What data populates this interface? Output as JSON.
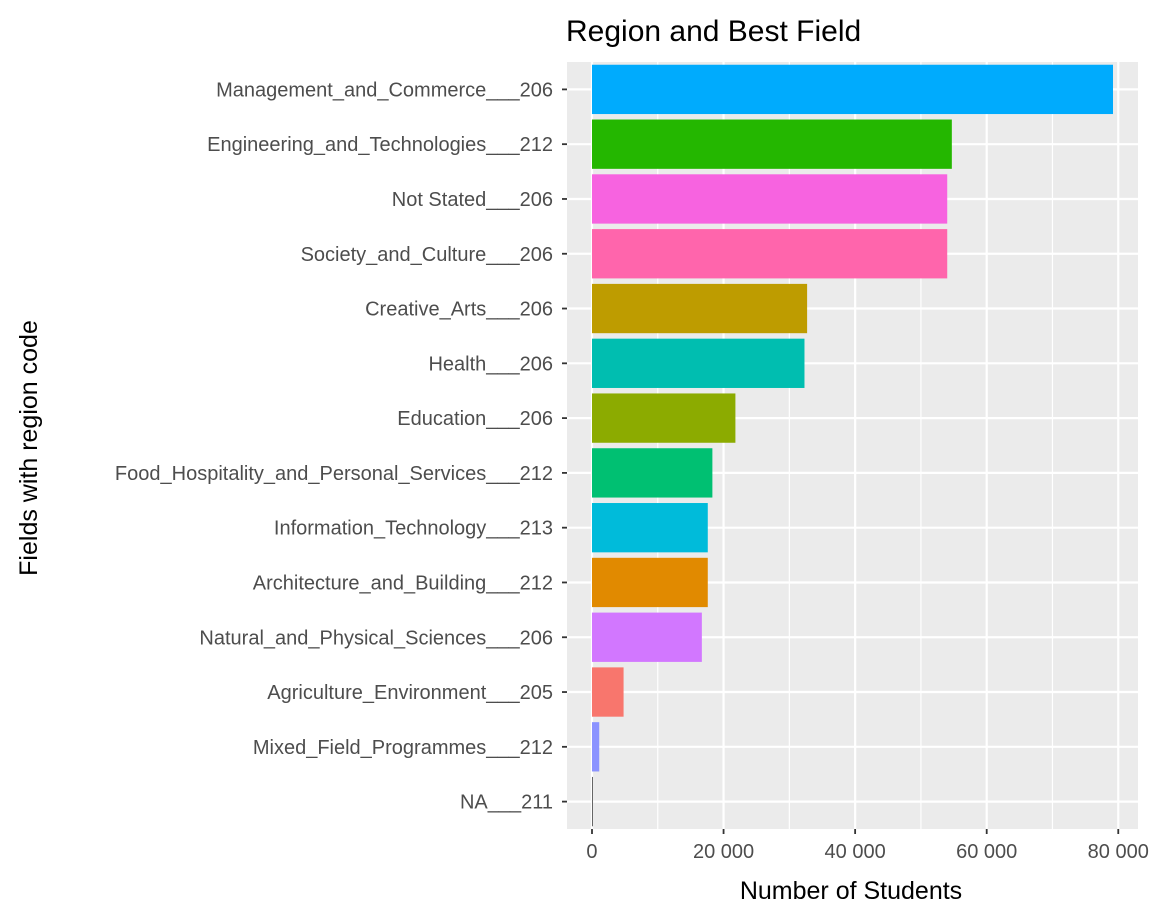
{
  "chart_data": {
    "type": "bar",
    "orientation": "horizontal",
    "title": "Region and Best Field",
    "xlabel": "Number of Students",
    "ylabel": "Fields with region code",
    "xlim": [
      -3800,
      83000
    ],
    "xticks": [
      0,
      20000,
      40000,
      60000,
      80000
    ],
    "xtick_labels": [
      "0",
      "20 000",
      "40 000",
      "60 000",
      "80 000"
    ],
    "grid": true,
    "legend": "none",
    "panel_background": "#ebebeb",
    "categories": [
      "Management_and_Commerce___206",
      "Engineering_and_Technologies___212",
      "Not Stated___206",
      "Society_and_Culture___206",
      "Creative_Arts___206",
      "Health___206",
      "Education___206",
      "Food_Hospitality_and_Personal_Services___212",
      "Information_Technology___213",
      "Architecture_and_Building___212",
      "Natural_and_Physical_Sciences___206",
      "Agriculture_Environment___205",
      "Mixed_Field_Programmes___212",
      "NA___211"
    ],
    "values": [
      79200,
      54700,
      54000,
      54000,
      32700,
      32300,
      21800,
      18300,
      17600,
      17600,
      16700,
      4800,
      1100,
      150
    ],
    "colors": [
      "#00ABFD",
      "#24B700",
      "#F763E0",
      "#FF65AC",
      "#BE9C00",
      "#00BEB0",
      "#8CAB00",
      "#00C072",
      "#00BBDA",
      "#E18A00",
      "#D277FF",
      "#F8766D",
      "#8B93FF",
      "#666666"
    ]
  }
}
